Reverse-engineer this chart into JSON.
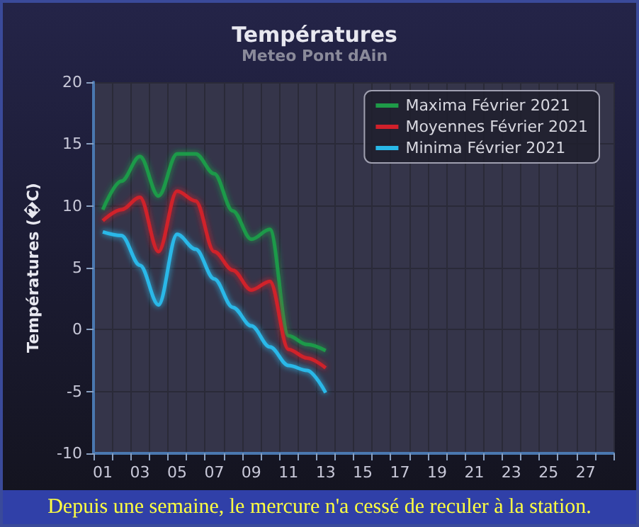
{
  "chart_data": {
    "type": "line",
    "title": "Températures",
    "subtitle": "Meteo Pont dAin",
    "ylabel": "Températures (�C)",
    "categories": [
      "01",
      null,
      "03",
      null,
      "05",
      null,
      "07",
      null,
      "09",
      null,
      "11",
      null,
      "13",
      null,
      "15",
      null,
      "17",
      null,
      "19",
      null,
      "21",
      null,
      "23",
      null,
      "25",
      null,
      "27",
      null
    ],
    "series": [
      {
        "name": "Maxima Février 2021",
        "color": "#1e9a48",
        "values": [
          9.7,
          12.0,
          14.0,
          10.8,
          14.2,
          14.2,
          12.6,
          9.6,
          7.3,
          8.1,
          -0.5,
          -1.2,
          -1.7,
          null,
          null,
          null,
          null,
          null,
          null,
          null,
          null,
          null,
          null,
          null,
          null,
          null,
          null,
          null
        ]
      },
      {
        "name": "Moyennes Février 2021",
        "color": "#d0202a",
        "values": [
          8.8,
          9.7,
          10.7,
          6.3,
          11.2,
          10.4,
          6.3,
          4.8,
          3.2,
          3.9,
          -1.6,
          -2.3,
          -3.1,
          null,
          null,
          null,
          null,
          null,
          null,
          null,
          null,
          null,
          null,
          null,
          null,
          null,
          null,
          null
        ]
      },
      {
        "name": "Minima Février 2021",
        "color": "#29b8e8",
        "values": [
          7.9,
          7.6,
          5.2,
          2.0,
          7.7,
          6.5,
          4.1,
          1.8,
          0.3,
          -1.4,
          -2.9,
          -3.3,
          -5.1,
          null,
          null,
          null,
          null,
          null,
          null,
          null,
          null,
          null,
          null,
          null,
          null,
          null,
          null,
          null
        ]
      }
    ],
    "ylim": [
      -10,
      20
    ],
    "yticks": [
      -10,
      -5,
      0,
      5,
      10,
      15,
      20
    ],
    "grid": true,
    "legend": "top right",
    "marker": "none",
    "line_style": "solid",
    "annotations": [
      "Depuis une semaine, le mercure n'a cessé de reculer à la station."
    ]
  }
}
